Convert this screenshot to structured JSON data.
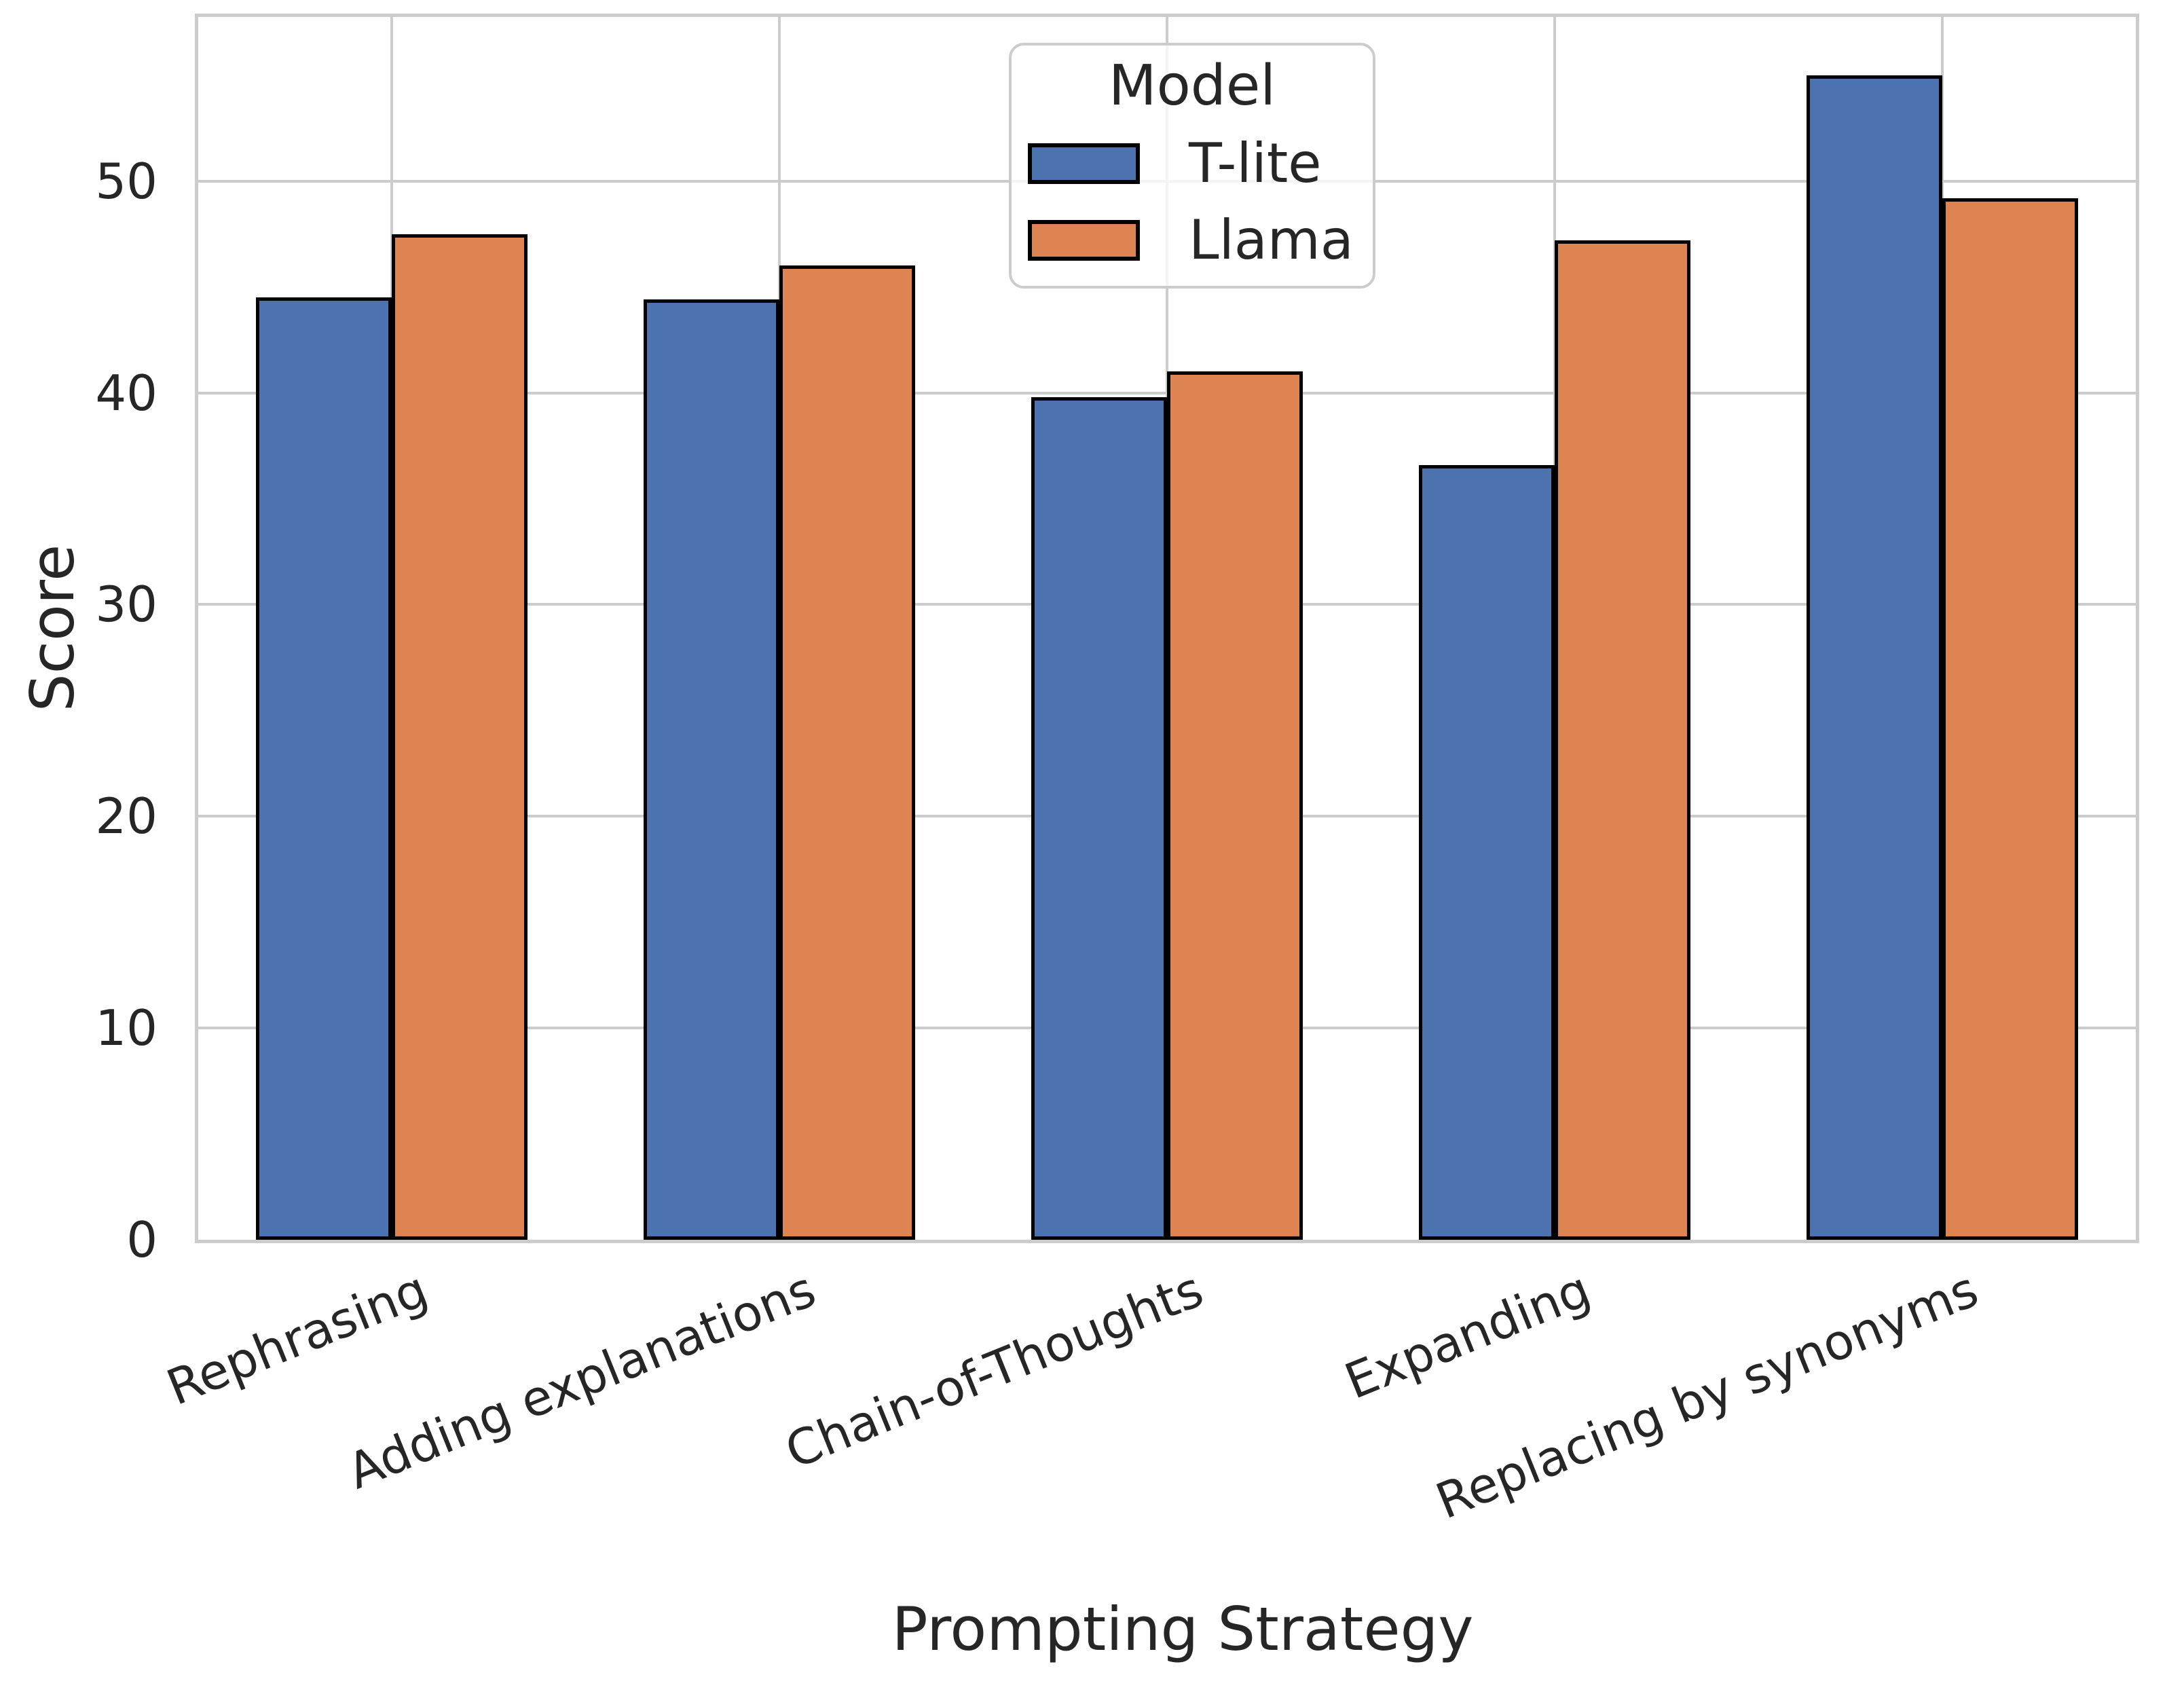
{
  "colors": {
    "background": "#FFFFFF",
    "grid": "#CCCCCC",
    "spine": "#CCCCCC",
    "text": "#262626",
    "bar_edge": "#000000",
    "blue": "#4C72B0",
    "orange": "#DD8452"
  },
  "chart_data": {
    "type": "bar",
    "title": "",
    "xlabel": "Prompting Strategy",
    "ylabel": "Score",
    "categories": [
      "Rephrasing",
      "Adding explanations",
      "Chain-of-Thoughts",
      "Expanding",
      "Replacing by synonyms"
    ],
    "series": [
      {
        "name": "T-lite",
        "color": "#4C72B0",
        "values": [
          44.5,
          44.4,
          39.8,
          36.6,
          55.0
        ]
      },
      {
        "name": "Llama",
        "color": "#DD8452",
        "values": [
          47.5,
          46.0,
          41.0,
          47.2,
          49.2
        ]
      }
    ],
    "ylim": [
      0,
      57.75
    ],
    "yticks": [
      0,
      10,
      20,
      30,
      40,
      50
    ],
    "grid": "both",
    "x_tick_rotation_deg": 22,
    "legend_position": "upper center"
  },
  "legend": {
    "title": "Model",
    "entries": [
      {
        "label": "T-lite",
        "color": "#4C72B0"
      },
      {
        "label": "Llama",
        "color": "#DD8452"
      }
    ]
  }
}
